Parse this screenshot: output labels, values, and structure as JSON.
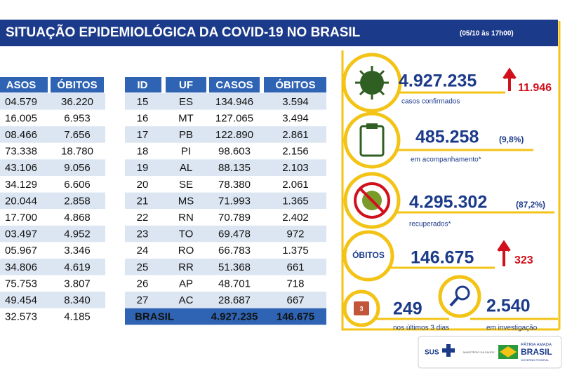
{
  "header": {
    "title": "SITUAÇÃO EPIDEMIOLÓGICA DA COVID-19 NO BRASIL",
    "timestamp": "(05/10 às 17h00)"
  },
  "left_table": {
    "columns": [
      "ASOS",
      "ÓBITOS"
    ],
    "rows": [
      [
        "04.579",
        "36.220"
      ],
      [
        "16.005",
        "6.953"
      ],
      [
        "08.466",
        "7.656"
      ],
      [
        "73.338",
        "18.780"
      ],
      [
        "43.106",
        "9.056"
      ],
      [
        "34.129",
        "6.606"
      ],
      [
        "20.044",
        "2.858"
      ],
      [
        "17.700",
        "4.868"
      ],
      [
        "03.497",
        "4.952"
      ],
      [
        "05.967",
        "3.346"
      ],
      [
        "34.806",
        "4.619"
      ],
      [
        "75.753",
        "3.807"
      ],
      [
        "49.454",
        "8.340"
      ],
      [
        "32.573",
        "4.185"
      ]
    ]
  },
  "right_table": {
    "columns": [
      "ID",
      "UF",
      "CASOS",
      "ÓBITOS"
    ],
    "rows": [
      [
        "15",
        "ES",
        "134.946",
        "3.594"
      ],
      [
        "16",
        "MT",
        "127.065",
        "3.494"
      ],
      [
        "17",
        "PB",
        "122.890",
        "2.861"
      ],
      [
        "18",
        "PI",
        "98.603",
        "2.156"
      ],
      [
        "19",
        "AL",
        "88.135",
        "2.103"
      ],
      [
        "20",
        "SE",
        "78.380",
        "2.061"
      ],
      [
        "21",
        "MS",
        "71.993",
        "1.365"
      ],
      [
        "22",
        "RN",
        "70.789",
        "2.402"
      ],
      [
        "23",
        "TO",
        "69.478",
        "972"
      ],
      [
        "24",
        "RO",
        "66.783",
        "1.375"
      ],
      [
        "25",
        "RR",
        "51.368",
        "661"
      ],
      [
        "26",
        "AP",
        "48.701",
        "718"
      ],
      [
        "27",
        "AC",
        "28.687",
        "667"
      ]
    ],
    "total": [
      "BRASIL",
      "4.927.235",
      "146.675"
    ]
  },
  "stats": {
    "confirmed": {
      "value": "4.927.235",
      "new": "11.946",
      "label": "casos confirmados"
    },
    "monitoring": {
      "value": "485.258",
      "pct": "(9,8%)",
      "label": "em acompanhamento*"
    },
    "recovered": {
      "value": "4.295.302",
      "pct": "(87,2%)",
      "label": "recuperados*"
    },
    "deaths": {
      "title": "ÓBITOS",
      "value": "146.675",
      "new": "323"
    },
    "last3": {
      "icon": "3",
      "value": "249",
      "label": "nos últimos 3 dias"
    },
    "investigation": {
      "value": "2.540",
      "label": "em investigação"
    }
  },
  "footer": {
    "sus": "SUS",
    "ministry": "MINISTÉRIO DA SAÚDE",
    "slogan": "PÁTRIA AMADA",
    "brand": "BRASIL",
    "gov": "GOVERNO FEDERAL"
  }
}
